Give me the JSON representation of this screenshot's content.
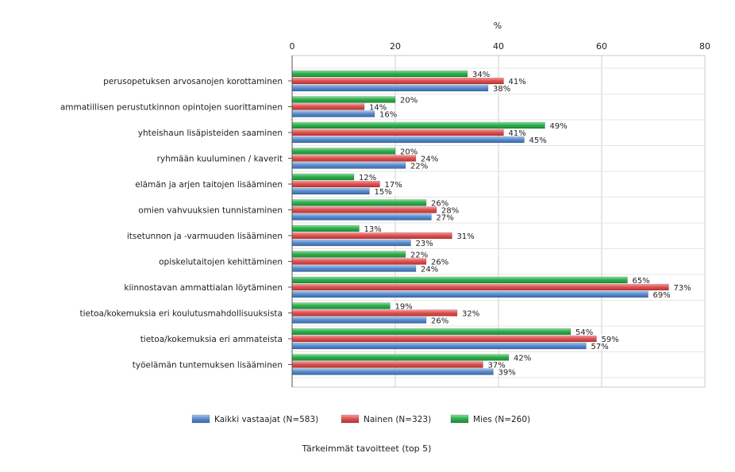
{
  "chart_data": {
    "type": "bar",
    "orientation": "horizontal",
    "title": "Tärkeimmät tavoitteet (top 5)",
    "unit_label": "%",
    "xlim": [
      0,
      80
    ],
    "ticks": [
      "0",
      "20",
      "40",
      "60",
      "80"
    ],
    "grid": true,
    "legend_position": "bottom",
    "categories": [
      "perusopetuksen arvosanojen korottaminen",
      "ammatillisen perustutkinnon opintojen suorittaminen",
      "yhteishaun lisäpisteiden saaminen",
      "ryhmään kuuluminen / kaverit",
      "elämän ja arjen taitojen lisääminen",
      "omien vahvuuksien tunnistaminen",
      "itsetunnon ja -varmuuden lisääminen",
      "opiskelutaitojen kehittäminen",
      "kiinnostavan ammattialan löytäminen",
      "tietoa/kokemuksia eri koulutusmahdollisuuksista",
      "tietoa/kokemuksia eri ammateista",
      "työelämän tuntemuksen lisääminen"
    ],
    "series": [
      {
        "name": "Kaikki vastaajat (N=583)",
        "color": "#4f81bd",
        "values": [
          38,
          16,
          45,
          22,
          15,
          27,
          23,
          24,
          69,
          26,
          57,
          39
        ],
        "labels": [
          "38%",
          "16%",
          "45%",
          "22%",
          "15%",
          "27%",
          "23%",
          "24%",
          "69%",
          "26%",
          "57%",
          "39%"
        ]
      },
      {
        "name": "Nainen (N=323)",
        "color": "#e05050",
        "values": [
          41,
          14,
          41,
          24,
          17,
          28,
          31,
          26,
          73,
          32,
          59,
          37
        ],
        "labels": [
          "41%",
          "14%",
          "41%",
          "24%",
          "17%",
          "28%",
          "31%",
          "26%",
          "73%",
          "32%",
          "59%",
          "37%"
        ]
      },
      {
        "name": "Mies (N=260)",
        "color": "#2ea84a",
        "values": [
          34,
          20,
          49,
          20,
          12,
          26,
          13,
          22,
          65,
          19,
          54,
          42
        ],
        "labels": [
          "34%",
          "20%",
          "49%",
          "20%",
          "12%",
          "26%",
          "13%",
          "22%",
          "65%",
          "19%",
          "54%",
          "42%"
        ]
      }
    ]
  }
}
